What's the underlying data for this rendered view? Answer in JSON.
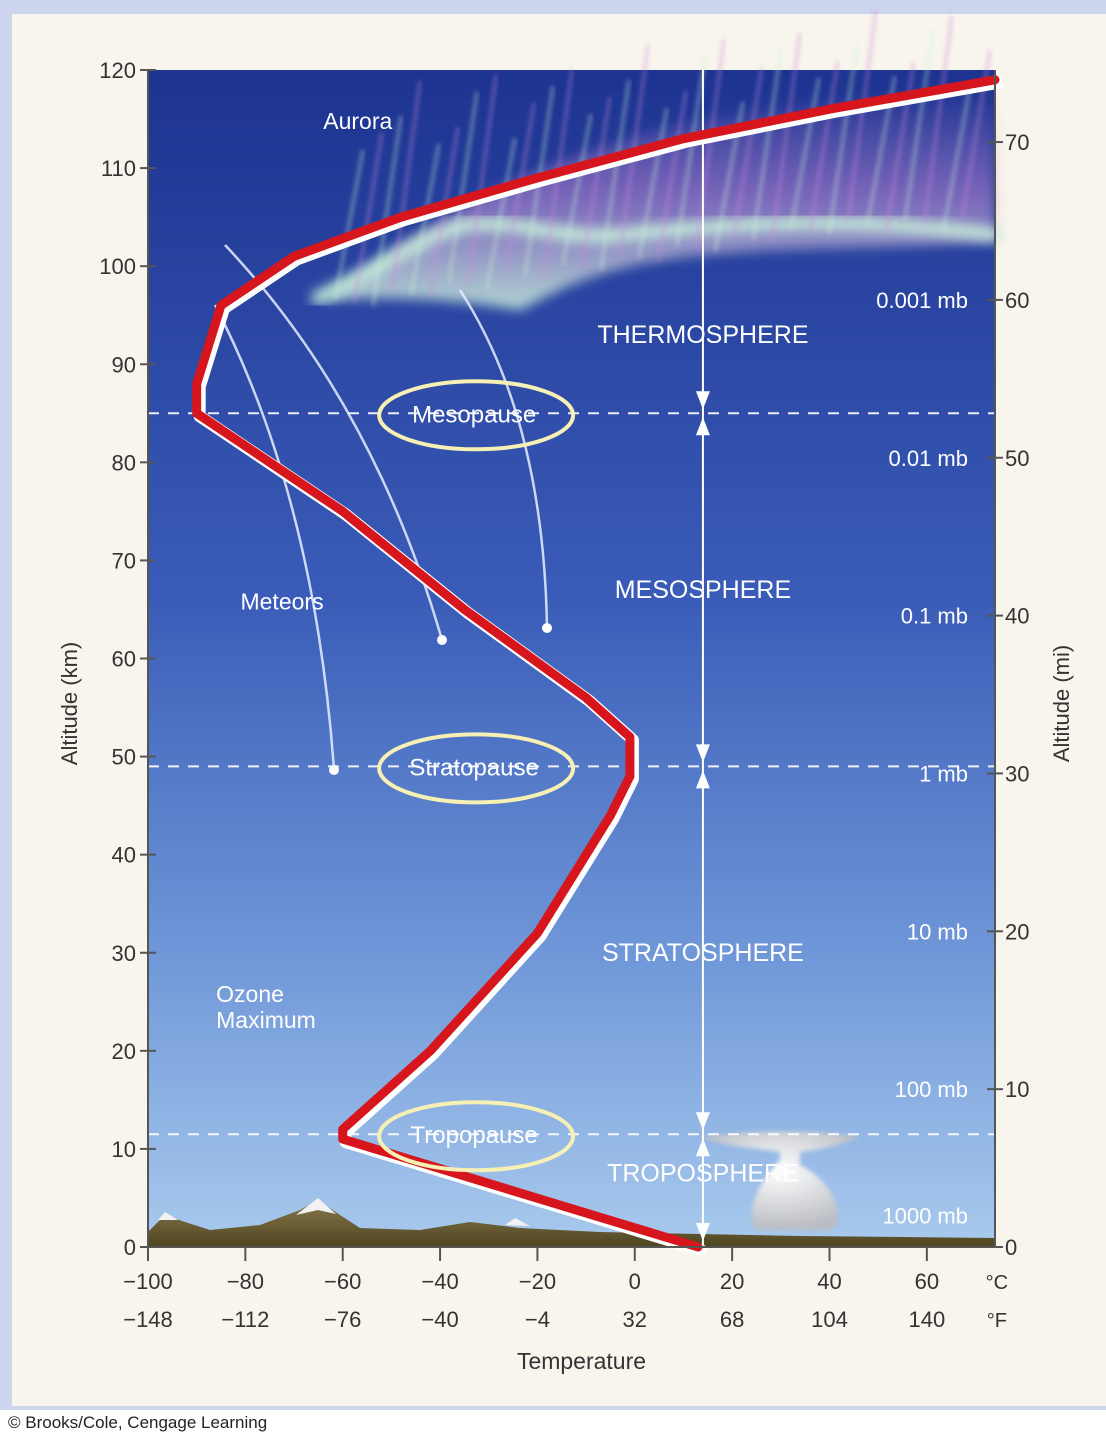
{
  "colors": {
    "sky_top": "#1d3390",
    "sky_bottom": "#a9caed",
    "profile_red": "#d6161c",
    "ellipse_yellow": "#f6f0b4",
    "aurora_green": "#c8f2da",
    "aurora_purple": "#c98ad8"
  },
  "chart_data": {
    "type": "line",
    "title": "",
    "xlabel": "Temperature",
    "ylabel_left": "Altitude (km)",
    "ylabel_right": "Altitude (mi)",
    "xlim": [
      -100,
      74
    ],
    "ylim": [
      0,
      120
    ],
    "x_ticks_c": [
      "−100",
      "−80",
      "−60",
      "−40",
      "−20",
      "0",
      "20",
      "40",
      "60"
    ],
    "x_ticks_f": [
      "−148",
      "−112",
      "−76",
      "−40",
      "−4",
      "32",
      "68",
      "104",
      "140"
    ],
    "x_unit_c": "°C",
    "x_unit_f": "°F",
    "y_ticks_km": [
      "0",
      "10",
      "20",
      "30",
      "40",
      "50",
      "60",
      "70",
      "80",
      "90",
      "100",
      "110",
      "120"
    ],
    "y_ticks_mi": [
      {
        "label": "0",
        "mi": 0
      },
      {
        "label": "10",
        "mi": 10
      },
      {
        "label": "20",
        "mi": 20
      },
      {
        "label": "30",
        "mi": 30
      },
      {
        "label": "40",
        "mi": 40
      },
      {
        "label": "50",
        "mi": 50
      },
      {
        "label": "60",
        "mi": 60
      },
      {
        "label": "70",
        "mi": 70
      }
    ],
    "pressure_labels": [
      {
        "label": "1000 mb",
        "mi": 2
      },
      {
        "label": "100 mb",
        "mi": 10
      },
      {
        "label": "10 mb",
        "mi": 20
      },
      {
        "label": "1 mb",
        "mi": 30
      },
      {
        "label": "0.1 mb",
        "mi": 40
      },
      {
        "label": "0.01 mb",
        "mi": 50
      },
      {
        "label": "0.001 mb",
        "mi": 60
      }
    ],
    "series": [
      {
        "x": [
          13,
          -60,
          -60,
          -42,
          -20,
          -5,
          -1,
          -1,
          -10,
          -35,
          -60,
          -90,
          -90,
          -85,
          -70,
          -48,
          -20,
          10,
          40,
          74
        ],
        "y": [
          0,
          11,
          12,
          20,
          32,
          44,
          48,
          52,
          56,
          65,
          75,
          85,
          88,
          96,
          101,
          105,
          109,
          113,
          116,
          119
        ]
      }
    ],
    "boundaries": [
      {
        "label": "Tropopause",
        "km": 11.5
      },
      {
        "label": "Stratopause",
        "km": 49
      },
      {
        "label": "Mesopause",
        "km": 85
      }
    ],
    "layers": [
      {
        "label": "TROPOSPHERE",
        "km": 7.5
      },
      {
        "label": "STRATOSPHERE",
        "km": 30
      },
      {
        "label": "MESOSPHERE",
        "km": 67
      },
      {
        "label": "THERMOSPHERE",
        "km": 93
      }
    ],
    "annotations": [
      {
        "label": "Aurora",
        "x": -64,
        "km": 114
      },
      {
        "label": "Meteors",
        "x": -81,
        "km": 65
      },
      {
        "label": "Ozone Maximum",
        "x": -86,
        "km": 25
      }
    ],
    "arrow_x": 14
  },
  "credit": "© Brooks/Cole, Cengage Learning"
}
